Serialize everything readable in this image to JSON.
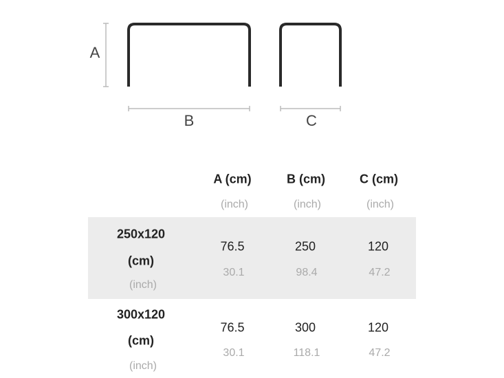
{
  "diagram": {
    "label_a": "A",
    "label_b": "B",
    "label_c": "C"
  },
  "table": {
    "headers": [
      {
        "cm": "A (cm)",
        "inch": "(inch)"
      },
      {
        "cm": "B (cm)",
        "inch": "(inch)"
      },
      {
        "cm": "C (cm)",
        "inch": "(inch)"
      }
    ],
    "rows": [
      {
        "size": "250x120",
        "unit_cm": "(cm)",
        "unit_inch": "(inch)",
        "cm": [
          "76.5",
          "250",
          "120"
        ],
        "inch": [
          "30.1",
          "98.4",
          "47.2"
        ],
        "highlight": true
      },
      {
        "size": "300x120",
        "unit_cm": "(cm)",
        "unit_inch": "(inch)",
        "cm": [
          "76.5",
          "300",
          "120"
        ],
        "inch": [
          "30.1",
          "118.1",
          "47.2"
        ],
        "highlight": false
      }
    ]
  },
  "colors": {
    "row_highlight": "#ececec",
    "frame": "#2a2a2a",
    "dim_line": "#bbbbbb"
  }
}
